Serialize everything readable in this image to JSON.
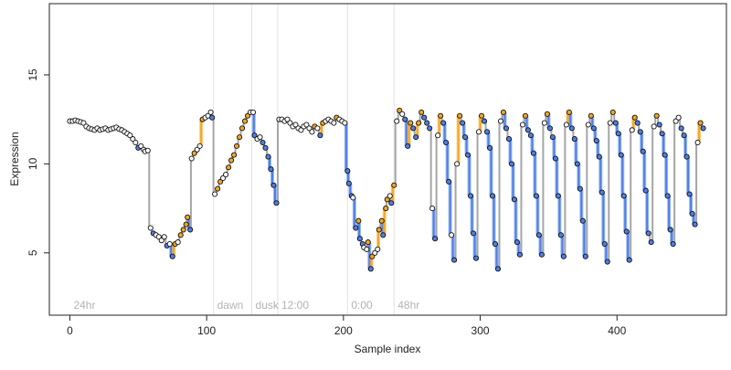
{
  "chart_data": {
    "type": "scatter",
    "xlabel": "Sample index",
    "ylabel": "Expression",
    "xlim": [
      -15,
      480
    ],
    "ylim": [
      1.5,
      19
    ],
    "xticks": [
      0,
      100,
      200,
      300,
      400
    ],
    "yticks": [
      5,
      10,
      15
    ],
    "grid": false,
    "legend": "none",
    "colors": {
      "step_line": "#a6a6a6",
      "up_segment": "#f5a623",
      "down_segment": "#4f7fe8",
      "separator": "#e3e3e3",
      "annotation": "#b3b3b3",
      "point_edge": "#111111"
    },
    "annotations": [
      {
        "text": "24hr",
        "x": 0
      },
      {
        "text": "dawn",
        "x": 105
      },
      {
        "text": "dusk",
        "x": 133
      },
      {
        "text": "12:00",
        "x": 152
      },
      {
        "text": "0:00",
        "x": 203
      },
      {
        "text": "48hr",
        "x": 237
      }
    ],
    "separators": [
      105,
      133,
      152,
      203,
      237
    ],
    "series": [
      {
        "points": [
          [
            0,
            12.4
          ],
          [
            2,
            12.4
          ],
          [
            4,
            12.45
          ],
          [
            6,
            12.4
          ],
          [
            8,
            12.35
          ],
          [
            10,
            12.3
          ],
          [
            12,
            12.1
          ],
          [
            14,
            12.0
          ],
          [
            16,
            11.95
          ],
          [
            18,
            11.9
          ],
          [
            20,
            12.0
          ],
          [
            22,
            11.9
          ],
          [
            24,
            11.95
          ],
          [
            26,
            12.0
          ],
          [
            28,
            11.9
          ],
          [
            30,
            11.95
          ],
          [
            32,
            12.0
          ],
          [
            34,
            12.05
          ],
          [
            36,
            11.95
          ],
          [
            38,
            11.9
          ],
          [
            40,
            11.8
          ],
          [
            42,
            11.7
          ],
          [
            44,
            11.6
          ],
          [
            46,
            11.4
          ],
          [
            48,
            11.2
          ],
          [
            50,
            10.9
          ],
          [
            52,
            11.0
          ],
          [
            54,
            10.8
          ],
          [
            55,
            10.7
          ],
          [
            57,
            10.75
          ],
          [
            59,
            6.4
          ],
          [
            61,
            6.1
          ],
          [
            63,
            6.0
          ],
          [
            65,
            5.9
          ],
          [
            67,
            5.7
          ],
          [
            69,
            5.9
          ],
          [
            71,
            5.4
          ],
          [
            73,
            5.5
          ],
          [
            75,
            4.8
          ],
          [
            77,
            5.5
          ],
          [
            79,
            5.6
          ],
          [
            81,
            6.0
          ],
          [
            83,
            6.3
          ],
          [
            85,
            6.6
          ],
          [
            86,
            7.0
          ],
          [
            88,
            6.3
          ],
          [
            89,
            10.3
          ],
          [
            91,
            10.6
          ],
          [
            93,
            10.8
          ],
          [
            95,
            11.0
          ],
          [
            97,
            12.5
          ],
          [
            99,
            12.6
          ],
          [
            101,
            12.7
          ],
          [
            103,
            12.9
          ],
          [
            104,
            12.6
          ],
          [
            106,
            8.3
          ],
          [
            108,
            8.6
          ],
          [
            110,
            9.0
          ],
          [
            112,
            9.2
          ],
          [
            114,
            9.4
          ],
          [
            116,
            9.8
          ],
          [
            118,
            10.2
          ],
          [
            120,
            10.5
          ],
          [
            122,
            11.0
          ],
          [
            124,
            11.5
          ],
          [
            126,
            12.0
          ],
          [
            128,
            12.4
          ],
          [
            130,
            12.7
          ],
          [
            132,
            12.9
          ],
          [
            134,
            12.9
          ],
          [
            135,
            11.6
          ],
          [
            137,
            11.4
          ],
          [
            139,
            11.5
          ],
          [
            141,
            11.2
          ],
          [
            143,
            10.9
          ],
          [
            145,
            10.4
          ],
          [
            147,
            9.7
          ],
          [
            149,
            8.8
          ],
          [
            151,
            7.8
          ],
          [
            153,
            12.5
          ],
          [
            155,
            12.5
          ],
          [
            157,
            12.4
          ],
          [
            159,
            12.5
          ],
          [
            161,
            12.3
          ],
          [
            163,
            12.1
          ],
          [
            165,
            12.2
          ],
          [
            167,
            12.0
          ],
          [
            169,
            11.9
          ],
          [
            171,
            12.1
          ],
          [
            173,
            12.2
          ],
          [
            175,
            12.0
          ],
          [
            177,
            11.8
          ],
          [
            179,
            12.1
          ],
          [
            181,
            12.0
          ],
          [
            183,
            11.6
          ],
          [
            185,
            12.3
          ],
          [
            187,
            12.4
          ],
          [
            189,
            12.5
          ],
          [
            191,
            12.4
          ],
          [
            193,
            12.3
          ],
          [
            195,
            12.6
          ],
          [
            197,
            12.5
          ],
          [
            199,
            12.4
          ],
          [
            201,
            12.3
          ],
          [
            203,
            9.6
          ],
          [
            204,
            8.9
          ],
          [
            206,
            8.2
          ],
          [
            207,
            8.1
          ],
          [
            209,
            6.4
          ],
          [
            211,
            6.8
          ],
          [
            212,
            5.8
          ],
          [
            214,
            5.5
          ],
          [
            215,
            5.3
          ],
          [
            217,
            5.2
          ],
          [
            218,
            5.6
          ],
          [
            220,
            4.1
          ],
          [
            221,
            4.8
          ],
          [
            223,
            5.0
          ],
          [
            225,
            5.2
          ],
          [
            226,
            6.3
          ],
          [
            228,
            6.8
          ],
          [
            229,
            6.0
          ],
          [
            231,
            7.5
          ],
          [
            232,
            8.0
          ],
          [
            234,
            8.2
          ],
          [
            235,
            7.8
          ],
          [
            237,
            8.8
          ],
          [
            239,
            12.4
          ],
          [
            241,
            13.0
          ],
          [
            243,
            12.8
          ],
          [
            245,
            12.5
          ],
          [
            247,
            11.0
          ],
          [
            249,
            12.3
          ],
          [
            251,
            12.0
          ],
          [
            253,
            11.5
          ],
          [
            255,
            12.3
          ],
          [
            257,
            12.9
          ],
          [
            259,
            12.6
          ],
          [
            261,
            12.3
          ],
          [
            263,
            12.0
          ],
          [
            265,
            7.5
          ],
          [
            267,
            5.8
          ],
          [
            269,
            11.6
          ],
          [
            271,
            12.7
          ],
          [
            273,
            12.3
          ],
          [
            275,
            11.2
          ],
          [
            277,
            9.0
          ],
          [
            279,
            6.0
          ],
          [
            281,
            4.6
          ],
          [
            283,
            10.0
          ],
          [
            285,
            12.7
          ],
          [
            287,
            12.3
          ],
          [
            289,
            11.5
          ],
          [
            291,
            10.5
          ],
          [
            293,
            8.2
          ],
          [
            295,
            6.1
          ],
          [
            297,
            4.7
          ],
          [
            299,
            11.8
          ],
          [
            301,
            12.7
          ],
          [
            303,
            12.4
          ],
          [
            305,
            11.8
          ],
          [
            307,
            10.9
          ],
          [
            309,
            8.2
          ],
          [
            311,
            5.5
          ],
          [
            313,
            4.1
          ],
          [
            315,
            12.4
          ],
          [
            317,
            12.9
          ],
          [
            319,
            12.0
          ],
          [
            321,
            11.4
          ],
          [
            323,
            10.0
          ],
          [
            325,
            8.0
          ],
          [
            327,
            5.6
          ],
          [
            329,
            4.9
          ],
          [
            331,
            12.2
          ],
          [
            333,
            12.7
          ],
          [
            335,
            11.9
          ],
          [
            337,
            11.6
          ],
          [
            339,
            10.6
          ],
          [
            341,
            8.2
          ],
          [
            343,
            6.0
          ],
          [
            345,
            4.9
          ],
          [
            347,
            12.3
          ],
          [
            349,
            12.8
          ],
          [
            351,
            12.0
          ],
          [
            353,
            11.5
          ],
          [
            355,
            10.3
          ],
          [
            357,
            8.2
          ],
          [
            359,
            6.0
          ],
          [
            361,
            4.8
          ],
          [
            363,
            12.2
          ],
          [
            365,
            12.9
          ],
          [
            367,
            12.0
          ],
          [
            369,
            11.4
          ],
          [
            371,
            10.0
          ],
          [
            373,
            8.6
          ],
          [
            375,
            6.8
          ],
          [
            377,
            4.8
          ],
          [
            379,
            12.2
          ],
          [
            381,
            12.7
          ],
          [
            383,
            12.0
          ],
          [
            385,
            11.3
          ],
          [
            387,
            10.4
          ],
          [
            389,
            8.4
          ],
          [
            391,
            5.5
          ],
          [
            393,
            4.5
          ],
          [
            395,
            12.3
          ],
          [
            397,
            12.9
          ],
          [
            399,
            12.3
          ],
          [
            401,
            11.7
          ],
          [
            403,
            10.5
          ],
          [
            405,
            8.2
          ],
          [
            407,
            6.2
          ],
          [
            409,
            4.6
          ],
          [
            411,
            11.9
          ],
          [
            413,
            12.6
          ],
          [
            415,
            12.3
          ],
          [
            417,
            11.8
          ],
          [
            419,
            10.7
          ],
          [
            421,
            8.5
          ],
          [
            423,
            6.1
          ],
          [
            425,
            5.6
          ],
          [
            427,
            12.1
          ],
          [
            429,
            12.7
          ],
          [
            431,
            12.2
          ],
          [
            433,
            11.7
          ],
          [
            435,
            10.5
          ],
          [
            437,
            8.2
          ],
          [
            439,
            6.3
          ],
          [
            441,
            5.5
          ],
          [
            443,
            12.4
          ],
          [
            445,
            12.6
          ],
          [
            447,
            12.0
          ],
          [
            449,
            11.6
          ],
          [
            451,
            10.4
          ],
          [
            453,
            8.3
          ],
          [
            455,
            7.2
          ],
          [
            457,
            6.6
          ],
          [
            459,
            11.2
          ],
          [
            461,
            12.3
          ],
          [
            463,
            12.0
          ]
        ]
      }
    ]
  }
}
